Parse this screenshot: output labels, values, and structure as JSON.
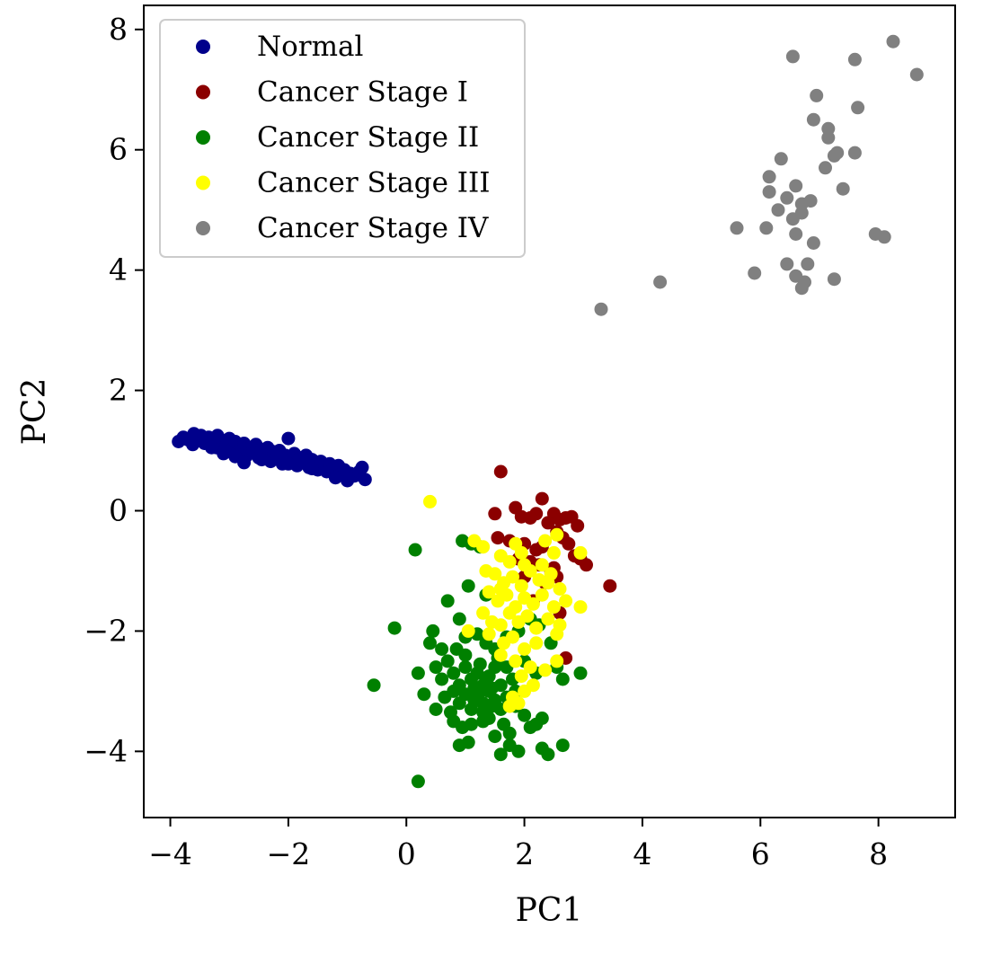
{
  "chart_data": {
    "type": "scatter",
    "title": "",
    "xlabel": "PC1",
    "ylabel": "PC2",
    "xlim": [
      -4.45,
      9.3
    ],
    "ylim": [
      -5.1,
      8.4
    ],
    "xticks": [
      -4,
      -2,
      0,
      2,
      4,
      6,
      8
    ],
    "yticks": [
      -4,
      -2,
      0,
      2,
      4,
      6,
      8
    ],
    "xtick_labels": [
      "−4",
      "−2",
      "0",
      "2",
      "4",
      "6",
      "8"
    ],
    "ytick_labels": [
      "−4",
      "−2",
      "0",
      "2",
      "4",
      "6",
      "8"
    ],
    "grid": false,
    "legend_position": "top-left",
    "series": [
      {
        "name": "Normal",
        "color": "#00008b",
        "points": [
          [
            -3.86,
            1.15
          ],
          [
            -3.78,
            1.22
          ],
          [
            -3.7,
            1.18
          ],
          [
            -3.62,
            1.1
          ],
          [
            -3.55,
            1.2
          ],
          [
            -3.48,
            1.25
          ],
          [
            -3.42,
            1.12
          ],
          [
            -3.35,
            1.22
          ],
          [
            -3.28,
            1.15
          ],
          [
            -3.22,
            1.05
          ],
          [
            -3.15,
            1.18
          ],
          [
            -3.1,
            0.95
          ],
          [
            -3.05,
            1.1
          ],
          [
            -3.0,
            1.2
          ],
          [
            -2.95,
            1.02
          ],
          [
            -2.9,
            1.15
          ],
          [
            -2.85,
            0.98
          ],
          [
            -2.8,
            1.08
          ],
          [
            -2.75,
            1.12
          ],
          [
            -2.7,
            0.92
          ],
          [
            -2.65,
            1.05
          ],
          [
            -2.6,
            1.0
          ],
          [
            -2.55,
            1.1
          ],
          [
            -2.5,
            0.88
          ],
          [
            -2.45,
            1.02
          ],
          [
            -2.4,
            0.95
          ],
          [
            -2.35,
            1.05
          ],
          [
            -2.3,
            0.82
          ],
          [
            -2.25,
            0.98
          ],
          [
            -2.2,
            0.9
          ],
          [
            -2.15,
            1.0
          ],
          [
            -2.1,
            0.78
          ],
          [
            -2.05,
            0.92
          ],
          [
            -2.0,
            1.2
          ],
          [
            -1.95,
            0.85
          ],
          [
            -1.9,
            0.95
          ],
          [
            -1.85,
            0.75
          ],
          [
            -1.8,
            0.88
          ],
          [
            -1.75,
            0.82
          ],
          [
            -1.7,
            0.92
          ],
          [
            -1.65,
            0.72
          ],
          [
            -1.6,
            0.85
          ],
          [
            -1.55,
            0.78
          ],
          [
            -1.5,
            0.68
          ],
          [
            -1.45,
            0.82
          ],
          [
            -1.4,
            0.72
          ],
          [
            -1.35,
            0.65
          ],
          [
            -1.3,
            0.78
          ],
          [
            -1.25,
            0.7
          ],
          [
            -1.2,
            0.58
          ],
          [
            -1.15,
            0.75
          ],
          [
            -1.1,
            0.62
          ],
          [
            -1.05,
            0.68
          ],
          [
            -1.0,
            0.5
          ],
          [
            -0.95,
            0.62
          ],
          [
            -0.88,
            0.58
          ],
          [
            -0.8,
            0.65
          ],
          [
            -0.75,
            0.72
          ],
          [
            -0.7,
            0.52
          ],
          [
            -3.3,
            1.05
          ],
          [
            -2.9,
            0.9
          ],
          [
            -2.45,
            0.85
          ],
          [
            -2.0,
            0.78
          ],
          [
            -1.6,
            0.7
          ],
          [
            -1.2,
            0.55
          ],
          [
            -3.6,
            1.28
          ],
          [
            -3.2,
            1.25
          ],
          [
            -2.75,
            0.8
          ]
        ]
      },
      {
        "name": "Cancer Stage I",
        "color": "#8b0000",
        "points": [
          [
            1.6,
            0.65
          ],
          [
            2.3,
            0.2
          ],
          [
            1.85,
            0.05
          ],
          [
            1.5,
            -0.05
          ],
          [
            1.95,
            -0.1
          ],
          [
            2.2,
            -0.05
          ],
          [
            2.5,
            -0.05
          ],
          [
            2.6,
            -0.15
          ],
          [
            2.7,
            -0.12
          ],
          [
            2.8,
            -0.1
          ],
          [
            2.9,
            -0.25
          ],
          [
            2.4,
            -0.2
          ],
          [
            2.1,
            -0.12
          ],
          [
            2.55,
            -0.35
          ],
          [
            2.65,
            -0.45
          ],
          [
            1.55,
            -0.45
          ],
          [
            1.75,
            -0.5
          ],
          [
            2.0,
            -0.55
          ],
          [
            2.3,
            -0.6
          ],
          [
            2.2,
            -0.65
          ],
          [
            2.75,
            -0.55
          ],
          [
            2.85,
            -0.75
          ],
          [
            2.95,
            -0.8
          ],
          [
            3.05,
            -0.9
          ],
          [
            2.5,
            -0.95
          ],
          [
            2.1,
            -0.85
          ],
          [
            1.9,
            -0.8
          ],
          [
            2.25,
            -0.9
          ],
          [
            2.45,
            -1.0
          ],
          [
            2.55,
            -1.1
          ],
          [
            2.35,
            -1.2
          ],
          [
            3.45,
            -1.25
          ],
          [
            2.6,
            -1.7
          ],
          [
            2.7,
            -2.45
          ],
          [
            2.15,
            -1.5
          ],
          [
            2.0,
            -1.1
          ]
        ]
      },
      {
        "name": "Cancer Stage II",
        "color": "#008000",
        "points": [
          [
            0.15,
            -0.65
          ],
          [
            0.95,
            -0.5
          ],
          [
            1.1,
            -0.55
          ],
          [
            1.25,
            -0.6
          ],
          [
            -0.2,
            -1.95
          ],
          [
            0.45,
            -2.0
          ],
          [
            0.7,
            -1.5
          ],
          [
            0.9,
            -1.8
          ],
          [
            1.05,
            -1.25
          ],
          [
            1.35,
            -1.4
          ],
          [
            0.4,
            -2.2
          ],
          [
            0.6,
            -2.3
          ],
          [
            0.85,
            -2.3
          ],
          [
            1.0,
            -2.1
          ],
          [
            1.2,
            -2.05
          ],
          [
            1.35,
            -2.2
          ],
          [
            1.5,
            -2.3
          ],
          [
            1.7,
            -2.1
          ],
          [
            1.9,
            -2.0
          ],
          [
            2.1,
            -1.8
          ],
          [
            2.25,
            -1.9
          ],
          [
            2.45,
            -2.2
          ],
          [
            0.2,
            -2.7
          ],
          [
            0.5,
            -2.6
          ],
          [
            0.7,
            -2.5
          ],
          [
            0.8,
            -2.7
          ],
          [
            0.9,
            -2.9
          ],
          [
            1.0,
            -2.6
          ],
          [
            1.1,
            -2.8
          ],
          [
            1.2,
            -2.7
          ],
          [
            1.3,
            -2.9
          ],
          [
            1.4,
            -2.75
          ],
          [
            1.5,
            -2.6
          ],
          [
            1.6,
            -2.9
          ],
          [
            1.8,
            -2.8
          ],
          [
            2.0,
            -2.5
          ],
          [
            2.2,
            -2.7
          ],
          [
            2.55,
            -2.6
          ],
          [
            2.65,
            -2.8
          ],
          [
            2.95,
            -2.7
          ],
          [
            -0.55,
            -2.9
          ],
          [
            0.3,
            -3.05
          ],
          [
            0.5,
            -3.3
          ],
          [
            0.65,
            -3.1
          ],
          [
            0.8,
            -3.0
          ],
          [
            0.9,
            -3.2
          ],
          [
            1.0,
            -3.05
          ],
          [
            1.1,
            -3.3
          ],
          [
            1.2,
            -3.1
          ],
          [
            1.3,
            -3.2
          ],
          [
            1.4,
            -3.0
          ],
          [
            1.5,
            -3.15
          ],
          [
            1.6,
            -3.3
          ],
          [
            1.7,
            -3.1
          ],
          [
            1.85,
            -3.25
          ],
          [
            2.0,
            -3.4
          ],
          [
            2.1,
            -3.6
          ],
          [
            2.2,
            -3.55
          ],
          [
            2.3,
            -3.45
          ],
          [
            0.8,
            -3.5
          ],
          [
            0.95,
            -3.6
          ],
          [
            1.1,
            -3.55
          ],
          [
            1.3,
            -3.5
          ],
          [
            1.5,
            -3.75
          ],
          [
            1.75,
            -3.7
          ],
          [
            0.9,
            -3.9
          ],
          [
            1.05,
            -3.85
          ],
          [
            1.6,
            -4.05
          ],
          [
            1.75,
            -3.9
          ],
          [
            1.9,
            -4.0
          ],
          [
            2.3,
            -3.95
          ],
          [
            2.4,
            -4.05
          ],
          [
            2.65,
            -3.9
          ],
          [
            0.2,
            -4.5
          ],
          [
            1.15,
            -2.95
          ],
          [
            1.25,
            -3.0
          ],
          [
            1.35,
            -2.85
          ],
          [
            1.45,
            -2.95
          ],
          [
            1.15,
            -3.15
          ],
          [
            1.3,
            -3.35
          ],
          [
            1.45,
            -3.25
          ],
          [
            1.0,
            -2.4
          ],
          [
            1.55,
            -2.45
          ],
          [
            1.25,
            -2.55
          ],
          [
            0.6,
            -2.8
          ],
          [
            1.7,
            -2.6
          ],
          [
            0.75,
            -3.35
          ],
          [
            1.4,
            -3.45
          ],
          [
            1.65,
            -3.55
          ],
          [
            1.85,
            -3.0
          ]
        ]
      },
      {
        "name": "Cancer Stage III",
        "color": "#ffff00",
        "points": [
          [
            0.4,
            0.15
          ],
          [
            1.15,
            -0.5
          ],
          [
            1.3,
            -0.6
          ],
          [
            1.85,
            -0.55
          ],
          [
            2.35,
            -0.5
          ],
          [
            2.55,
            -0.4
          ],
          [
            2.95,
            -0.7
          ],
          [
            1.6,
            -0.75
          ],
          [
            1.75,
            -0.85
          ],
          [
            2.0,
            -0.9
          ],
          [
            2.5,
            -0.7
          ],
          [
            1.35,
            -1.0
          ],
          [
            1.5,
            -1.05
          ],
          [
            1.65,
            -1.2
          ],
          [
            1.8,
            -1.1
          ],
          [
            1.95,
            -1.25
          ],
          [
            2.1,
            -1.0
          ],
          [
            2.25,
            -1.15
          ],
          [
            2.4,
            -1.2
          ],
          [
            2.6,
            -1.3
          ],
          [
            1.4,
            -1.35
          ],
          [
            1.55,
            -1.5
          ],
          [
            1.7,
            -1.4
          ],
          [
            1.85,
            -1.6
          ],
          [
            2.0,
            -1.45
          ],
          [
            2.15,
            -1.55
          ],
          [
            2.3,
            -1.4
          ],
          [
            2.5,
            -1.6
          ],
          [
            2.7,
            -1.5
          ],
          [
            2.95,
            -1.6
          ],
          [
            1.3,
            -1.7
          ],
          [
            1.45,
            -1.85
          ],
          [
            1.6,
            -1.9
          ],
          [
            1.75,
            -1.7
          ],
          [
            1.9,
            -1.85
          ],
          [
            2.05,
            -1.75
          ],
          [
            2.2,
            -1.95
          ],
          [
            2.4,
            -1.8
          ],
          [
            2.6,
            -1.9
          ],
          [
            1.05,
            -2.0
          ],
          [
            1.4,
            -2.05
          ],
          [
            1.65,
            -2.2
          ],
          [
            1.8,
            -2.1
          ],
          [
            2.0,
            -2.3
          ],
          [
            2.2,
            -2.2
          ],
          [
            2.55,
            -2.05
          ],
          [
            1.6,
            -2.4
          ],
          [
            1.85,
            -2.5
          ],
          [
            2.1,
            -2.6
          ],
          [
            2.35,
            -2.65
          ],
          [
            2.55,
            -2.5
          ],
          [
            1.95,
            -2.75
          ],
          [
            2.15,
            -2.9
          ],
          [
            2.0,
            -3.0
          ],
          [
            1.8,
            -3.1
          ],
          [
            1.75,
            -3.25
          ],
          [
            1.9,
            -3.2
          ],
          [
            1.6,
            -1.3
          ],
          [
            2.3,
            -0.9
          ],
          [
            1.95,
            -0.7
          ],
          [
            2.45,
            -1.05
          ]
        ]
      },
      {
        "name": "Cancer Stage IV",
        "color": "#808080",
        "points": [
          [
            8.25,
            7.8
          ],
          [
            6.55,
            7.55
          ],
          [
            7.6,
            7.5
          ],
          [
            8.65,
            7.25
          ],
          [
            6.95,
            6.9
          ],
          [
            7.65,
            6.7
          ],
          [
            6.9,
            6.5
          ],
          [
            7.15,
            6.35
          ],
          [
            7.15,
            6.2
          ],
          [
            6.35,
            5.85
          ],
          [
            7.3,
            5.95
          ],
          [
            7.6,
            5.95
          ],
          [
            7.25,
            5.9
          ],
          [
            7.1,
            5.7
          ],
          [
            6.15,
            5.55
          ],
          [
            6.6,
            5.4
          ],
          [
            7.4,
            5.35
          ],
          [
            6.15,
            5.3
          ],
          [
            6.45,
            5.2
          ],
          [
            6.85,
            5.15
          ],
          [
            6.7,
            5.1
          ],
          [
            6.3,
            5.0
          ],
          [
            6.7,
            4.95
          ],
          [
            6.55,
            4.85
          ],
          [
            5.6,
            4.7
          ],
          [
            6.1,
            4.7
          ],
          [
            6.6,
            4.6
          ],
          [
            7.95,
            4.6
          ],
          [
            8.1,
            4.55
          ],
          [
            6.9,
            4.45
          ],
          [
            6.45,
            4.1
          ],
          [
            6.8,
            4.1
          ],
          [
            5.9,
            3.95
          ],
          [
            6.6,
            3.9
          ],
          [
            6.75,
            3.8
          ],
          [
            7.25,
            3.85
          ],
          [
            6.7,
            3.7
          ],
          [
            4.3,
            3.8
          ],
          [
            3.3,
            3.35
          ]
        ]
      }
    ]
  }
}
